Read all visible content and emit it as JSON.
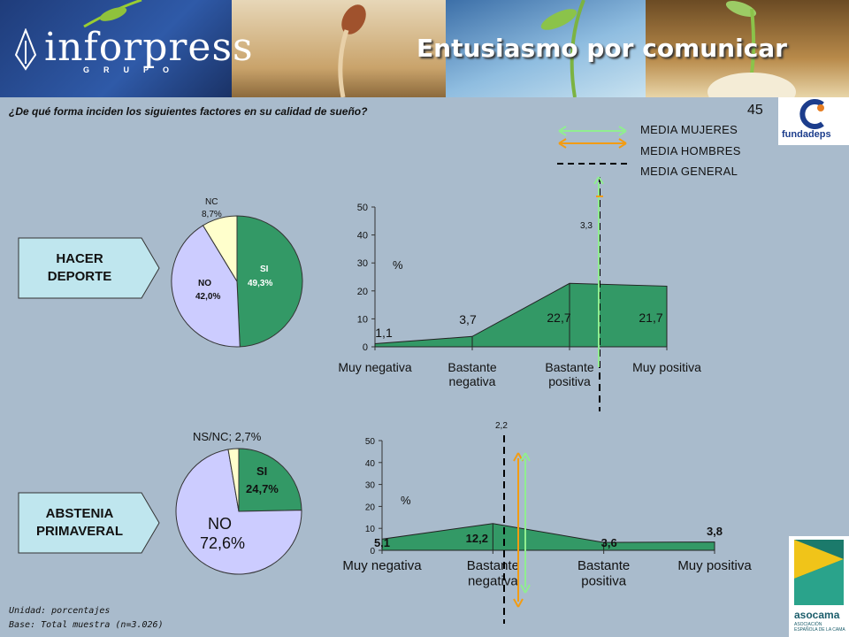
{
  "header": {
    "brand_name": "inforpress",
    "brand_sub": "GRUPO",
    "title": "Entusiasmo por comunicar"
  },
  "question": "¿De qué forma inciden los siguientes factores en su calidad de sueño?",
  "page_number": "45",
  "logos": {
    "fundadeps": "fundadeps",
    "asocama": "asocama",
    "asocama_sub": "ASOCIACIÓN ESPAÑOLA DE LA CAMA"
  },
  "legend": {
    "items": [
      {
        "label": "MEDIA MUJERES",
        "color": "#90ee90",
        "style": "double-arrow"
      },
      {
        "label": "MEDIA HOMBRES",
        "color": "#f39c12",
        "style": "double-arrow"
      },
      {
        "label": "MEDIA GENERAL",
        "color": "#000000",
        "style": "dashed"
      }
    ]
  },
  "sections": {
    "deporte": {
      "label": "HACER\nDEPORTE"
    },
    "astenia": {
      "label": "ABSTENIA\nPRIMAVERAL"
    }
  },
  "footer": {
    "unit": "Unidad: porcentajes",
    "base": "Base: Total muestra (n=3.026)"
  },
  "colors": {
    "green": "#339966",
    "lavender": "#ccccff",
    "cream": "#ffffcc"
  },
  "chart_data": [
    {
      "type": "pie",
      "id": "pie-deporte",
      "slices": [
        {
          "label": "SI",
          "value": 49.3,
          "display": "49,3%",
          "color": "#339966"
        },
        {
          "label": "NO",
          "value": 42.0,
          "display": "42,0%",
          "color": "#ccccff"
        },
        {
          "label": "NC",
          "value": 8.7,
          "display": "8,7%",
          "color": "#ffffcc"
        }
      ]
    },
    {
      "type": "area",
      "id": "area-deporte",
      "categories": [
        "Muy negativa",
        "Bastante\nnegativa",
        "Bastante\npositiva",
        "Muy positiva"
      ],
      "values": [
        1.1,
        3.7,
        22.7,
        21.7
      ],
      "value_labels": [
        "1,1",
        "3,7",
        "22,7",
        "21,7"
      ],
      "ylabel": "%",
      "ylim": [
        0,
        50
      ],
      "yticks": [
        0,
        10,
        20,
        30,
        40,
        50
      ],
      "mean_label": "3,3"
    },
    {
      "type": "pie",
      "id": "pie-astenia",
      "slices": [
        {
          "label": "SI",
          "value": 24.7,
          "display": "24,7%",
          "color": "#339966"
        },
        {
          "label": "NO",
          "value": 72.6,
          "display": "72,6%",
          "color": "#ccccff"
        },
        {
          "label": "NS/NC",
          "value": 2.7,
          "display": "2,7%",
          "color": "#ffffcc"
        }
      ]
    },
    {
      "type": "area",
      "id": "area-astenia",
      "categories": [
        "Muy negativa",
        "Bastante\nnegativa",
        "Bastante\npositiva",
        "Muy positiva"
      ],
      "values": [
        5.1,
        12.2,
        3.6,
        3.8
      ],
      "value_labels": [
        "5,1",
        "12,2",
        "3,6",
        "3,8"
      ],
      "ylabel": "%",
      "ylim": [
        0,
        50
      ],
      "yticks": [
        0,
        10,
        20,
        30,
        40,
        50
      ],
      "mean_label": "2,2"
    }
  ]
}
